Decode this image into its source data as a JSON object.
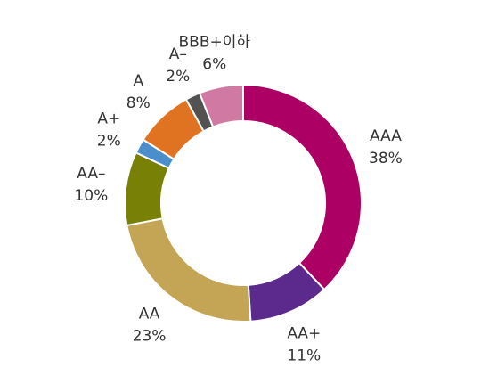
{
  "chart_data": {
    "type": "pie",
    "variant": "donut",
    "title": "",
    "legend": "none",
    "categories": [
      "AAA",
      "AA+",
      "AA",
      "AA–",
      "A+",
      "A",
      "A–",
      "BBB+이하"
    ],
    "values": [
      38,
      11,
      23,
      10,
      2,
      8,
      2,
      6
    ],
    "value_labels": [
      "38%",
      "11%",
      "23%",
      "10%",
      "2%",
      "8%",
      "2%",
      "6%"
    ],
    "colors": [
      "#ad0065",
      "#5b2a8c",
      "#c4a455",
      "#788006",
      "#4a8fcc",
      "#e07322",
      "#525252",
      "#d07aa3"
    ]
  }
}
